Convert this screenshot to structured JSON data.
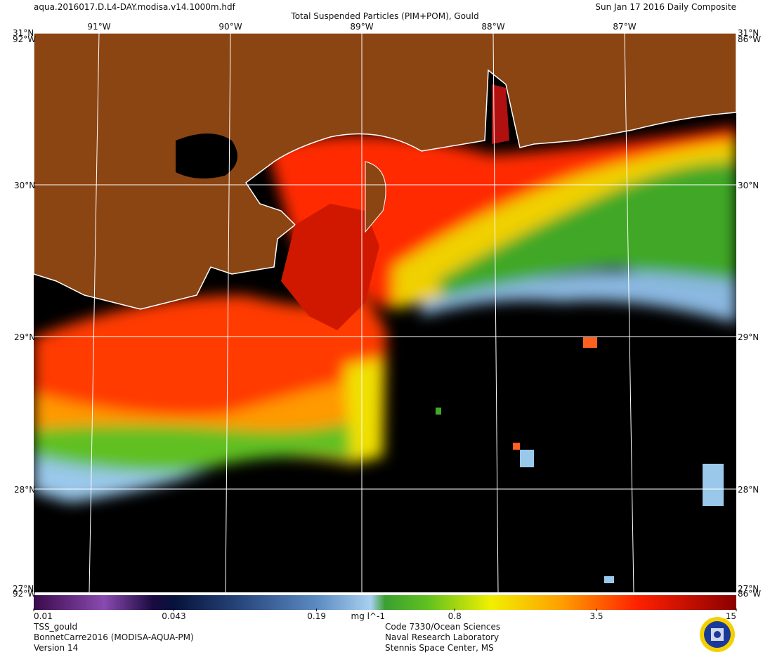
{
  "header": {
    "filename": "aqua.2016017.D.L4-DAY.modisa.v14.1000m.hdf",
    "title": "Total Suspended Particles (PIM+POM), Gould",
    "date": "Sun Jan 17 2016 Daily Composite"
  },
  "map": {
    "lon_labels": [
      "91°W",
      "90°W",
      "89°W",
      "88°W",
      "87°W"
    ],
    "lat_labels": [
      "31°N",
      "30°N",
      "29°N",
      "28°N"
    ],
    "corner_labels": [
      "31°N",
      "92°W",
      "31°N",
      "86°W",
      "27°N",
      "92°W",
      "27°N",
      "86°W"
    ]
  },
  "colorbar": {
    "scale": "log",
    "lim": [
      0.01,
      15
    ],
    "ticks": [
      0.01,
      0.043,
      0.19,
      0.8,
      3.5,
      15
    ],
    "units": "mg l^-1"
  },
  "footer": {
    "left": [
      "TSS_gould",
      "BonnetCarre2016 (MODISA-AQUA-PM)",
      "Version 14"
    ],
    "center": [
      "Code 7330/Ocean Sciences",
      "Naval Research Laboratory",
      "Stennis Space Center, MS"
    ]
  }
}
